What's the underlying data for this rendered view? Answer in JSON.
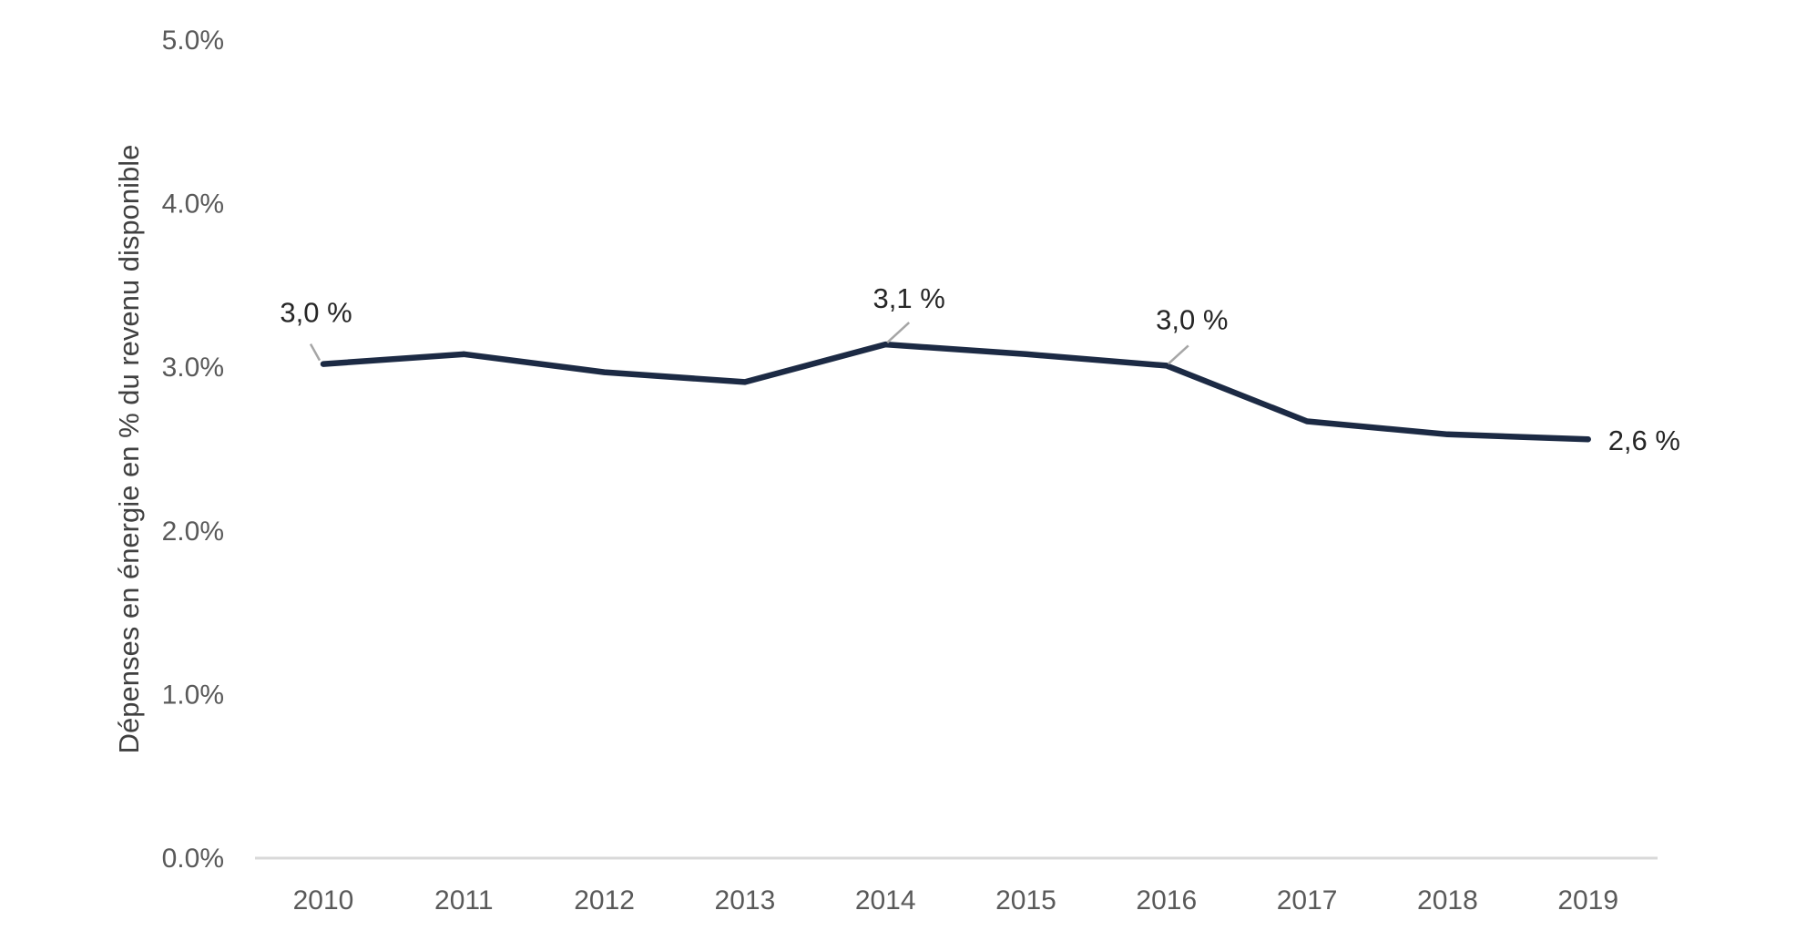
{
  "chart_data": {
    "type": "line",
    "title": "",
    "xlabel": "",
    "ylabel": "Dépenses en énergie en % du revenu disponible",
    "x": [
      "2010",
      "2011",
      "2012",
      "2013",
      "2014",
      "2015",
      "2016",
      "2017",
      "2018",
      "2019"
    ],
    "series": [
      {
        "values": [
          3.02,
          3.08,
          2.97,
          2.91,
          3.14,
          3.08,
          3.01,
          2.67,
          2.59,
          2.56
        ]
      }
    ],
    "ylim": [
      0,
      5
    ],
    "yticks": [
      "0.0%",
      "1.0%",
      "2.0%",
      "3.0%",
      "4.0%",
      "5.0%"
    ],
    "grid": false,
    "legend": "none",
    "annotations": [
      {
        "x": "2010",
        "text": "3,0 %"
      },
      {
        "x": "2014",
        "text": "3,1 %"
      },
      {
        "x": "2016",
        "text": "3,0 %"
      },
      {
        "x": "2019",
        "text": "2,6 %"
      }
    ],
    "colors": {
      "line": "#1c2a44",
      "axis": "#d9d9d9",
      "leader": "#a6a6a6"
    }
  }
}
